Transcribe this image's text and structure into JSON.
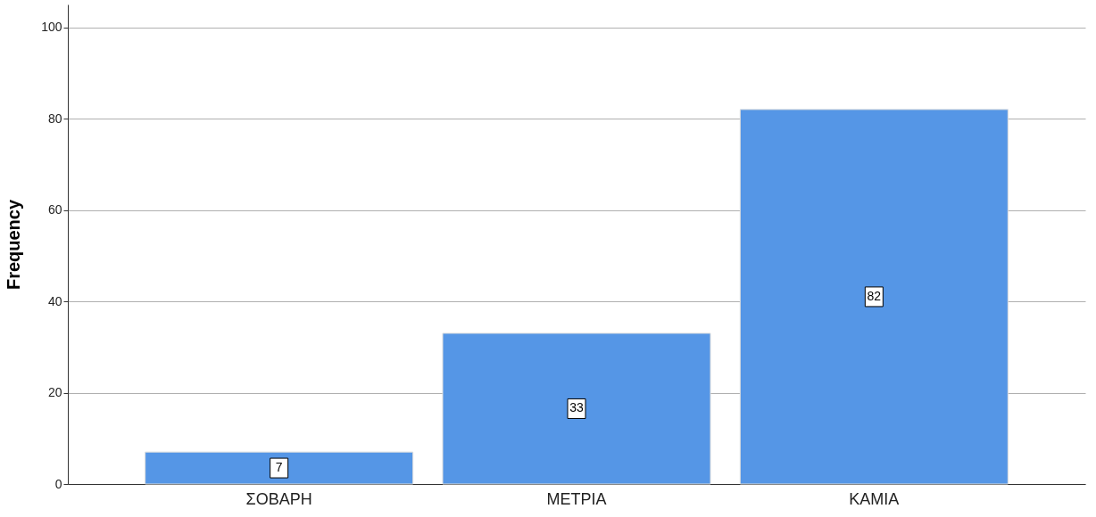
{
  "chart_data": {
    "type": "bar",
    "ylabel": "Frequency",
    "categories": [
      "ΣΟΒΑΡΗ",
      "ΜΕΤΡΙΑ",
      "ΚΑΜΙΑ"
    ],
    "values": [
      7,
      33,
      82
    ],
    "color": "#5596e6",
    "ylim": [
      0,
      105
    ],
    "yticks": [
      0,
      20,
      40,
      60,
      80,
      100
    ],
    "grid": "y",
    "data_labels": true
  }
}
